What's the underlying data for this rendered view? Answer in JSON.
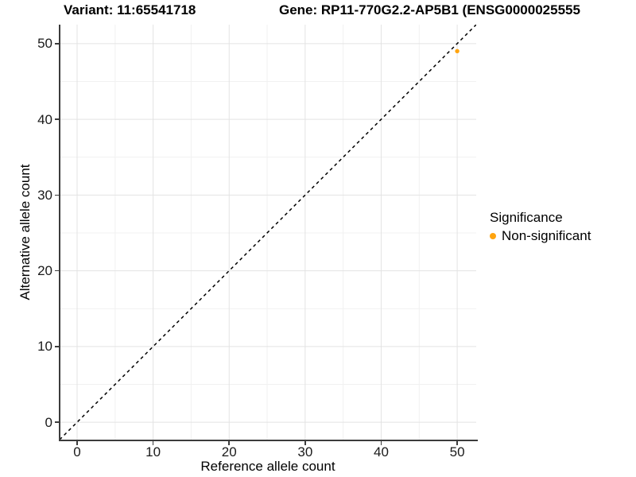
{
  "titles": {
    "variant": "Variant: 11:65541718",
    "gene": "Gene: RP11-770G2.2-AP5B1 (ENSG0000025555"
  },
  "chart_data": {
    "type": "scatter",
    "title_left": "Variant: 11:65541718",
    "title_right": "Gene: RP11-770G2.2-AP5B1 (ENSG0000025555",
    "xlabel": "Reference allele count",
    "ylabel": "Alternative allele count",
    "xlim": [
      -2.3,
      52.5
    ],
    "ylim": [
      -2.3,
      52.5
    ],
    "xticks": [
      0,
      10,
      20,
      30,
      40,
      50
    ],
    "yticks": [
      0,
      10,
      20,
      30,
      40,
      50
    ],
    "xticks_minor": [
      5,
      15,
      25,
      35,
      45
    ],
    "yticks_minor": [
      5,
      15,
      25,
      35,
      45
    ],
    "grid": true,
    "identity_line": {
      "style": "dashed",
      "color": "#000000"
    },
    "points": [
      {
        "x": 50,
        "y": 49,
        "series": "Non-significant"
      }
    ],
    "legend": {
      "title": "Significance",
      "position": "right",
      "entries": [
        {
          "label": "Non-significant",
          "color": "#FFA40F"
        }
      ]
    },
    "colors": {
      "major_grid": "#E3E3E3",
      "minor_grid": "#F1F1F1",
      "axis": "#3C3C3C",
      "point": "#FFA40F",
      "background": "#FFFFFF"
    }
  }
}
